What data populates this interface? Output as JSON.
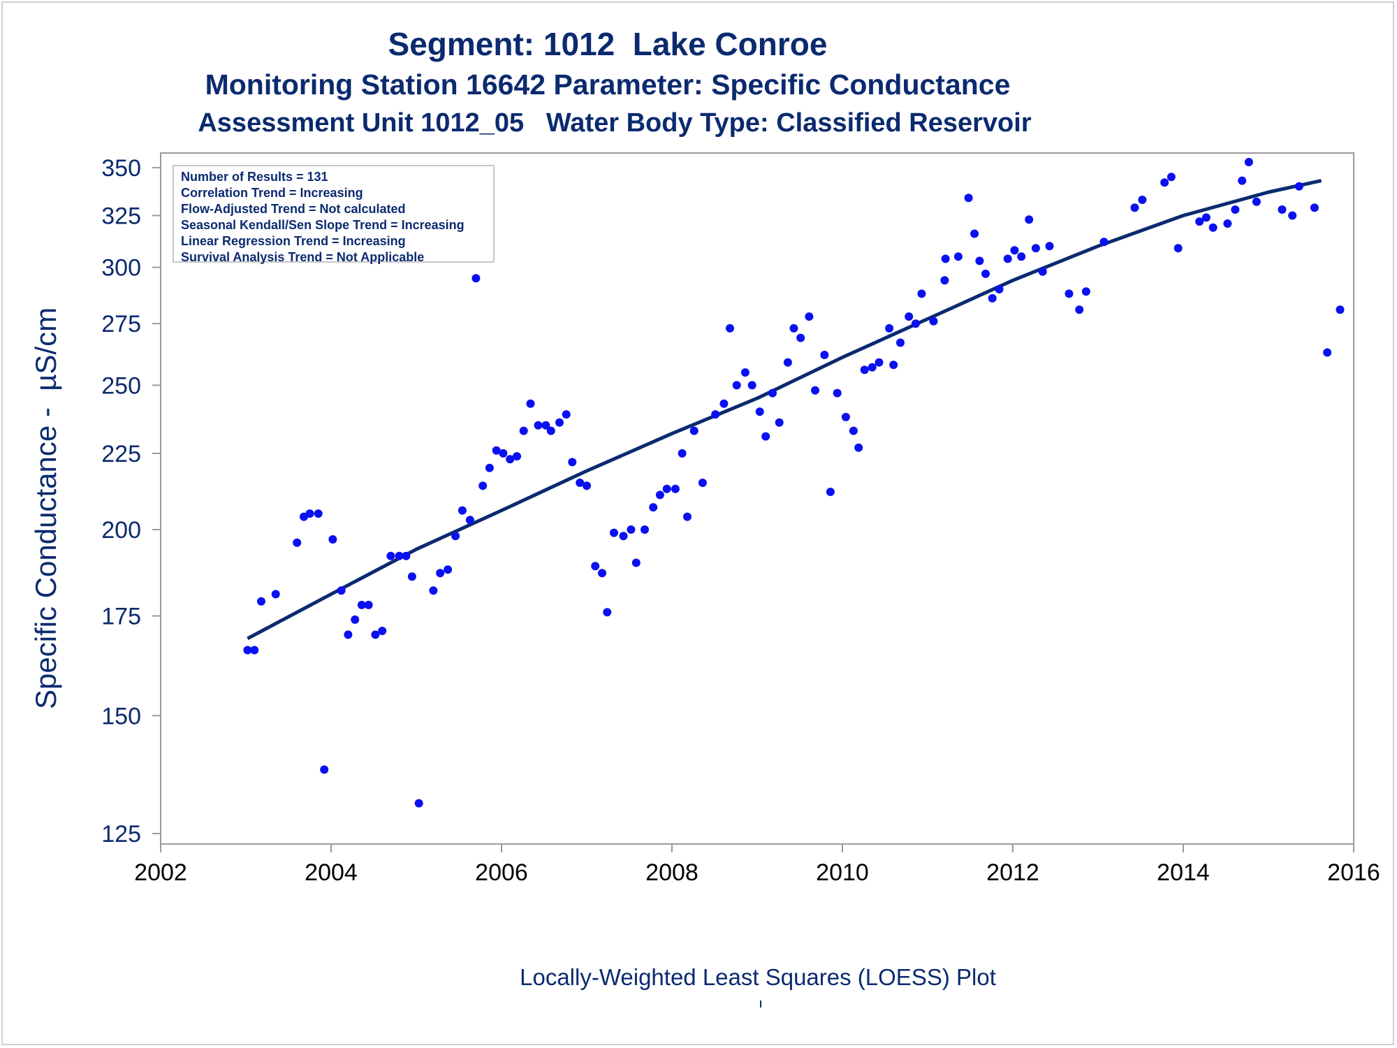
{
  "titles": {
    "line1": "Segment: 1012  Lake Conroe",
    "line2": "Monitoring Station 16642 Parameter: Specific Conductance",
    "line3": "Assessment Unit 1012_05   Water Body Type: Classified Reservoir"
  },
  "stats": [
    "Number of Results = 131",
    "Correlation Trend = Increasing",
    "Flow-Adjusted Trend = Not calculated",
    "Seasonal Kendall/Sen Slope Trend = Increasing",
    "Linear Regression Trend = Increasing",
    "Survival Analysis Trend = Not Applicable"
  ],
  "footnote": "Locally-Weighted Least Squares (LOESS) Plot",
  "colors": {
    "text": "#0b2a6f",
    "points": "#0a10f0",
    "line": "#0b2a6f",
    "axis": "#9a9a9a"
  },
  "chart_data": {
    "type": "scatter",
    "ylabel": "Specific Conductance -  µS/cm",
    "xlabel": "",
    "y_scale": "log",
    "xlim": [
      2002,
      2016
    ],
    "ylim": [
      123,
      358
    ],
    "x_ticks": [
      2002,
      2004,
      2006,
      2008,
      2010,
      2012,
      2014,
      2016
    ],
    "y_ticks": [
      125,
      150,
      175,
      200,
      225,
      250,
      275,
      300,
      325,
      350
    ],
    "grid": false,
    "points": [
      [
        2003.02,
        166
      ],
      [
        2003.1,
        166
      ],
      [
        2003.18,
        179
      ],
      [
        2003.35,
        181
      ],
      [
        2003.6,
        196
      ],
      [
        2003.68,
        204
      ],
      [
        2003.75,
        205
      ],
      [
        2003.85,
        205
      ],
      [
        2003.92,
        138
      ],
      [
        2004.02,
        197
      ],
      [
        2004.12,
        182
      ],
      [
        2004.2,
        170
      ],
      [
        2004.28,
        174
      ],
      [
        2004.36,
        178
      ],
      [
        2004.44,
        178
      ],
      [
        2004.52,
        170
      ],
      [
        2004.6,
        171
      ],
      [
        2004.7,
        192
      ],
      [
        2004.8,
        192
      ],
      [
        2004.88,
        192
      ],
      [
        2004.95,
        186
      ],
      [
        2005.03,
        131
      ],
      [
        2005.2,
        182
      ],
      [
        2005.28,
        187
      ],
      [
        2005.37,
        188
      ],
      [
        2005.46,
        198
      ],
      [
        2005.54,
        206
      ],
      [
        2005.63,
        203
      ],
      [
        2005.7,
        295
      ],
      [
        2005.78,
        214
      ],
      [
        2005.86,
        220
      ],
      [
        2005.94,
        226
      ],
      [
        2006.02,
        225
      ],
      [
        2006.1,
        223
      ],
      [
        2006.18,
        224
      ],
      [
        2006.26,
        233
      ],
      [
        2006.34,
        243
      ],
      [
        2006.43,
        235
      ],
      [
        2006.52,
        235
      ],
      [
        2006.58,
        233
      ],
      [
        2006.68,
        236
      ],
      [
        2006.76,
        239
      ],
      [
        2006.83,
        222
      ],
      [
        2006.92,
        215
      ],
      [
        2007.0,
        214
      ],
      [
        2007.1,
        189
      ],
      [
        2007.18,
        187
      ],
      [
        2007.24,
        176
      ],
      [
        2007.32,
        199
      ],
      [
        2007.43,
        198
      ],
      [
        2007.52,
        200
      ],
      [
        2007.58,
        190
      ],
      [
        2007.68,
        200
      ],
      [
        2007.78,
        207
      ],
      [
        2007.86,
        211
      ],
      [
        2007.94,
        213
      ],
      [
        2008.04,
        213
      ],
      [
        2008.12,
        225
      ],
      [
        2008.18,
        204
      ],
      [
        2008.26,
        233
      ],
      [
        2008.36,
        215
      ],
      [
        2008.51,
        239
      ],
      [
        2008.61,
        243
      ],
      [
        2008.68,
        273
      ],
      [
        2008.76,
        250
      ],
      [
        2008.86,
        255
      ],
      [
        2008.94,
        250
      ],
      [
        2009.03,
        240
      ],
      [
        2009.1,
        231
      ],
      [
        2009.18,
        247
      ],
      [
        2009.26,
        236
      ],
      [
        2009.36,
        259
      ],
      [
        2009.43,
        273
      ],
      [
        2009.51,
        269
      ],
      [
        2009.61,
        278
      ],
      [
        2009.68,
        248
      ],
      [
        2009.79,
        262
      ],
      [
        2009.86,
        212
      ],
      [
        2009.94,
        247
      ],
      [
        2010.04,
        238
      ],
      [
        2010.13,
        233
      ],
      [
        2010.19,
        227
      ],
      [
        2010.26,
        256
      ],
      [
        2010.35,
        257
      ],
      [
        2010.43,
        259
      ],
      [
        2010.55,
        273
      ],
      [
        2010.6,
        258
      ],
      [
        2010.68,
        267
      ],
      [
        2010.78,
        278
      ],
      [
        2010.86,
        275
      ],
      [
        2010.93,
        288
      ],
      [
        2011.07,
        276
      ],
      [
        2011.2,
        294
      ],
      [
        2011.21,
        304
      ],
      [
        2011.36,
        305
      ],
      [
        2011.48,
        334
      ],
      [
        2011.55,
        316
      ],
      [
        2011.61,
        303
      ],
      [
        2011.68,
        297
      ],
      [
        2011.76,
        286
      ],
      [
        2011.84,
        290
      ],
      [
        2011.94,
        304
      ],
      [
        2012.02,
        308
      ],
      [
        2012.1,
        305
      ],
      [
        2012.19,
        323
      ],
      [
        2012.27,
        309
      ],
      [
        2012.35,
        298
      ],
      [
        2012.43,
        310
      ],
      [
        2012.66,
        288
      ],
      [
        2012.78,
        281
      ],
      [
        2012.86,
        289
      ],
      [
        2013.07,
        312
      ],
      [
        2013.43,
        329
      ],
      [
        2013.52,
        333
      ],
      [
        2013.78,
        342
      ],
      [
        2013.86,
        345
      ],
      [
        2013.94,
        309
      ],
      [
        2014.19,
        322
      ],
      [
        2014.27,
        324
      ],
      [
        2014.35,
        319
      ],
      [
        2014.52,
        321
      ],
      [
        2014.61,
        328
      ],
      [
        2014.69,
        343
      ],
      [
        2014.77,
        353
      ],
      [
        2014.86,
        332
      ],
      [
        2015.16,
        328
      ],
      [
        2015.28,
        325
      ],
      [
        2015.36,
        340
      ],
      [
        2015.54,
        329
      ],
      [
        2015.69,
        263
      ],
      [
        2015.84,
        281
      ]
    ],
    "series": [
      {
        "type": "loess",
        "x": [
          2003.02,
          2004.0,
          2005.0,
          2006.0,
          2007.0,
          2008.0,
          2009.0,
          2010.0,
          2011.0,
          2012.0,
          2013.0,
          2014.0,
          2015.0,
          2015.62
        ],
        "y": [
          169,
          181,
          194,
          206,
          219,
          232,
          245,
          261,
          277,
          294,
          310,
          325,
          337,
          343
        ]
      }
    ]
  }
}
